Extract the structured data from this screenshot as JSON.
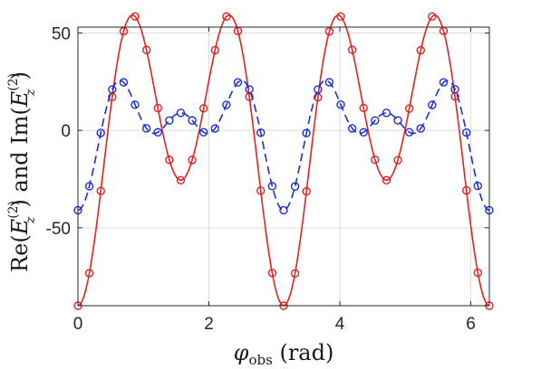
{
  "chart_data": {
    "type": "line",
    "title": "",
    "xlabel": {
      "sym": "φ",
      "sub": "obs",
      "unit": " (rad)"
    },
    "ylabel": {
      "re": "Re(",
      "im": ") and Im(",
      "sym": "E",
      "sub": "z",
      "sup": "(2)",
      "close": ")"
    },
    "xlim": [
      0,
      6.2832
    ],
    "ylim": [
      -90,
      53
    ],
    "xticks": [
      0,
      2,
      4,
      6
    ],
    "xtick_labels": [
      "0",
      "2",
      "4",
      "6"
    ],
    "yticks": [
      50,
      0,
      -50
    ],
    "ytick_labels": [
      "50",
      "0",
      "-50"
    ],
    "grid": true,
    "legend": "none",
    "curve_samples": 200,
    "marker_step": 0.1745,
    "series": [
      {
        "kind": "Re",
        "color": "#e8201e",
        "line_style": "solid",
        "marker": "circle",
        "model": {
          "c0": 0.2,
          "cos2": -29.5,
          "cos4": -58.0,
          "cos6": -2.7
        }
      },
      {
        "kind": "Im",
        "color": "#1a2fd6",
        "line_style": "dashed",
        "marker": "circle",
        "model": {
          "c0": 2.0,
          "cos2": -10.0,
          "cos4": -18.0,
          "cos6": -15.0
        }
      }
    ]
  }
}
